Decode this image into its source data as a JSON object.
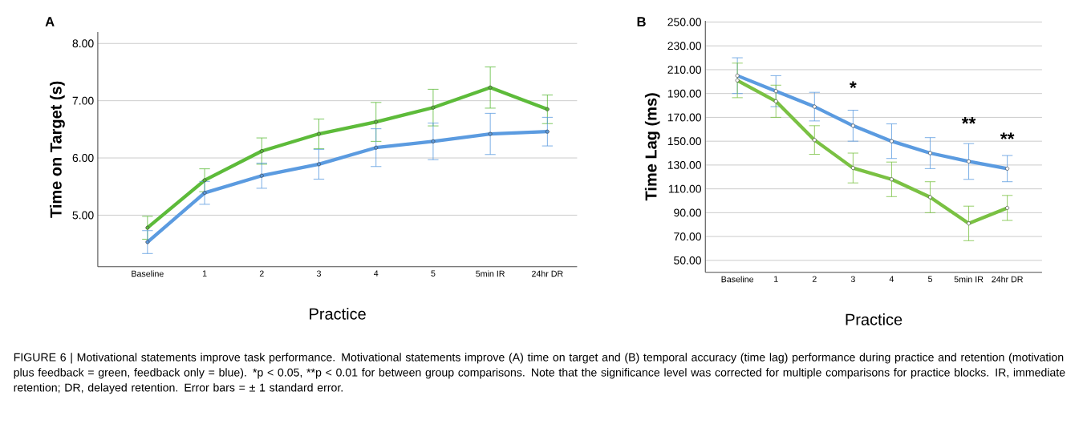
{
  "chart_data": [
    {
      "type": "line",
      "title": "A",
      "xlabel": "Practice",
      "ylabel": "Time on Target (s)",
      "categories": [
        "Baseline",
        "1",
        "2",
        "3",
        "4",
        "5",
        "5min IR",
        "24hr DR"
      ],
      "series": [
        {
          "color": "#5dbb3a",
          "values": [
            4.78,
            5.61,
            6.12,
            6.42,
            6.63,
            6.88,
            7.23,
            6.85
          ],
          "errors": [
            0.2,
            0.2,
            0.23,
            0.26,
            0.34,
            0.32,
            0.36,
            0.25
          ]
        },
        {
          "color": "#5b9be0",
          "values": [
            4.53,
            5.39,
            5.69,
            5.89,
            6.18,
            6.29,
            6.42,
            6.46
          ],
          "errors": [
            0.2,
            0.2,
            0.22,
            0.26,
            0.33,
            0.32,
            0.36,
            0.25
          ]
        }
      ],
      "ylim": [
        4.1,
        8.2
      ],
      "yticks": [
        {
          "value": 5,
          "label": "5.00"
        },
        {
          "value": 6,
          "label": "6.00"
        },
        {
          "value": 7,
          "label": "7.00"
        },
        {
          "value": 8,
          "label": "8.00"
        }
      ],
      "grid": "y",
      "marker": "circle",
      "line_style": "solid",
      "annotations": [
        "FIGURE 6 | Motivational statements improve task performance. Motivational statements improve (A) time on target and (B) temporal accuracy (time lag) performance during practice and retention (motivation plus feedback = green, feedback only = blue). *p < 0.05, **p < 0.01 for between group comparisons. Note that the significance level was corrected for multiple comparisons for practice blocks. IR, immediate retention; DR, delayed retention. Error bars = ± 1 standard error."
      ]
    },
    {
      "type": "line",
      "title": "B",
      "xlabel": "Practice",
      "ylabel": "Time Lag (ms)",
      "categories": [
        "Baseline",
        "1",
        "2",
        "3",
        "4",
        "5",
        "5min IR",
        "24hr DR"
      ],
      "series": [
        {
          "color": "#5b9be0",
          "values": [
            205,
            192,
            179,
            163,
            150,
            140,
            133,
            127
          ],
          "errors": [
            15,
            13,
            12,
            13,
            14.5,
            13,
            15,
            11
          ]
        },
        {
          "color": "#7ac143",
          "values": [
            201,
            183.5,
            151,
            127.5,
            118,
            103,
            81,
            94
          ],
          "errors": [
            14.5,
            13.5,
            12,
            12.5,
            14.5,
            13,
            14.5,
            10.5
          ]
        }
      ],
      "ylim": [
        40,
        251
      ],
      "yticks": [
        {
          "value": 50,
          "label": "50.00"
        },
        {
          "value": 70,
          "label": "70.00"
        },
        {
          "value": 90,
          "label": "90.00"
        },
        {
          "value": 110,
          "label": "110.00"
        },
        {
          "value": 130,
          "label": "130.00"
        },
        {
          "value": 150,
          "label": "150.00"
        },
        {
          "value": 170,
          "label": "170.00"
        },
        {
          "value": 190,
          "label": "190.00"
        },
        {
          "value": 210,
          "label": "210.00"
        },
        {
          "value": 230,
          "label": "230.00"
        },
        {
          "value": 250,
          "label": "250.00"
        }
      ],
      "grid": "y",
      "marker": "circle",
      "line_style": "solid",
      "annotations": [
        "*",
        "**",
        "**"
      ]
    }
  ]
}
